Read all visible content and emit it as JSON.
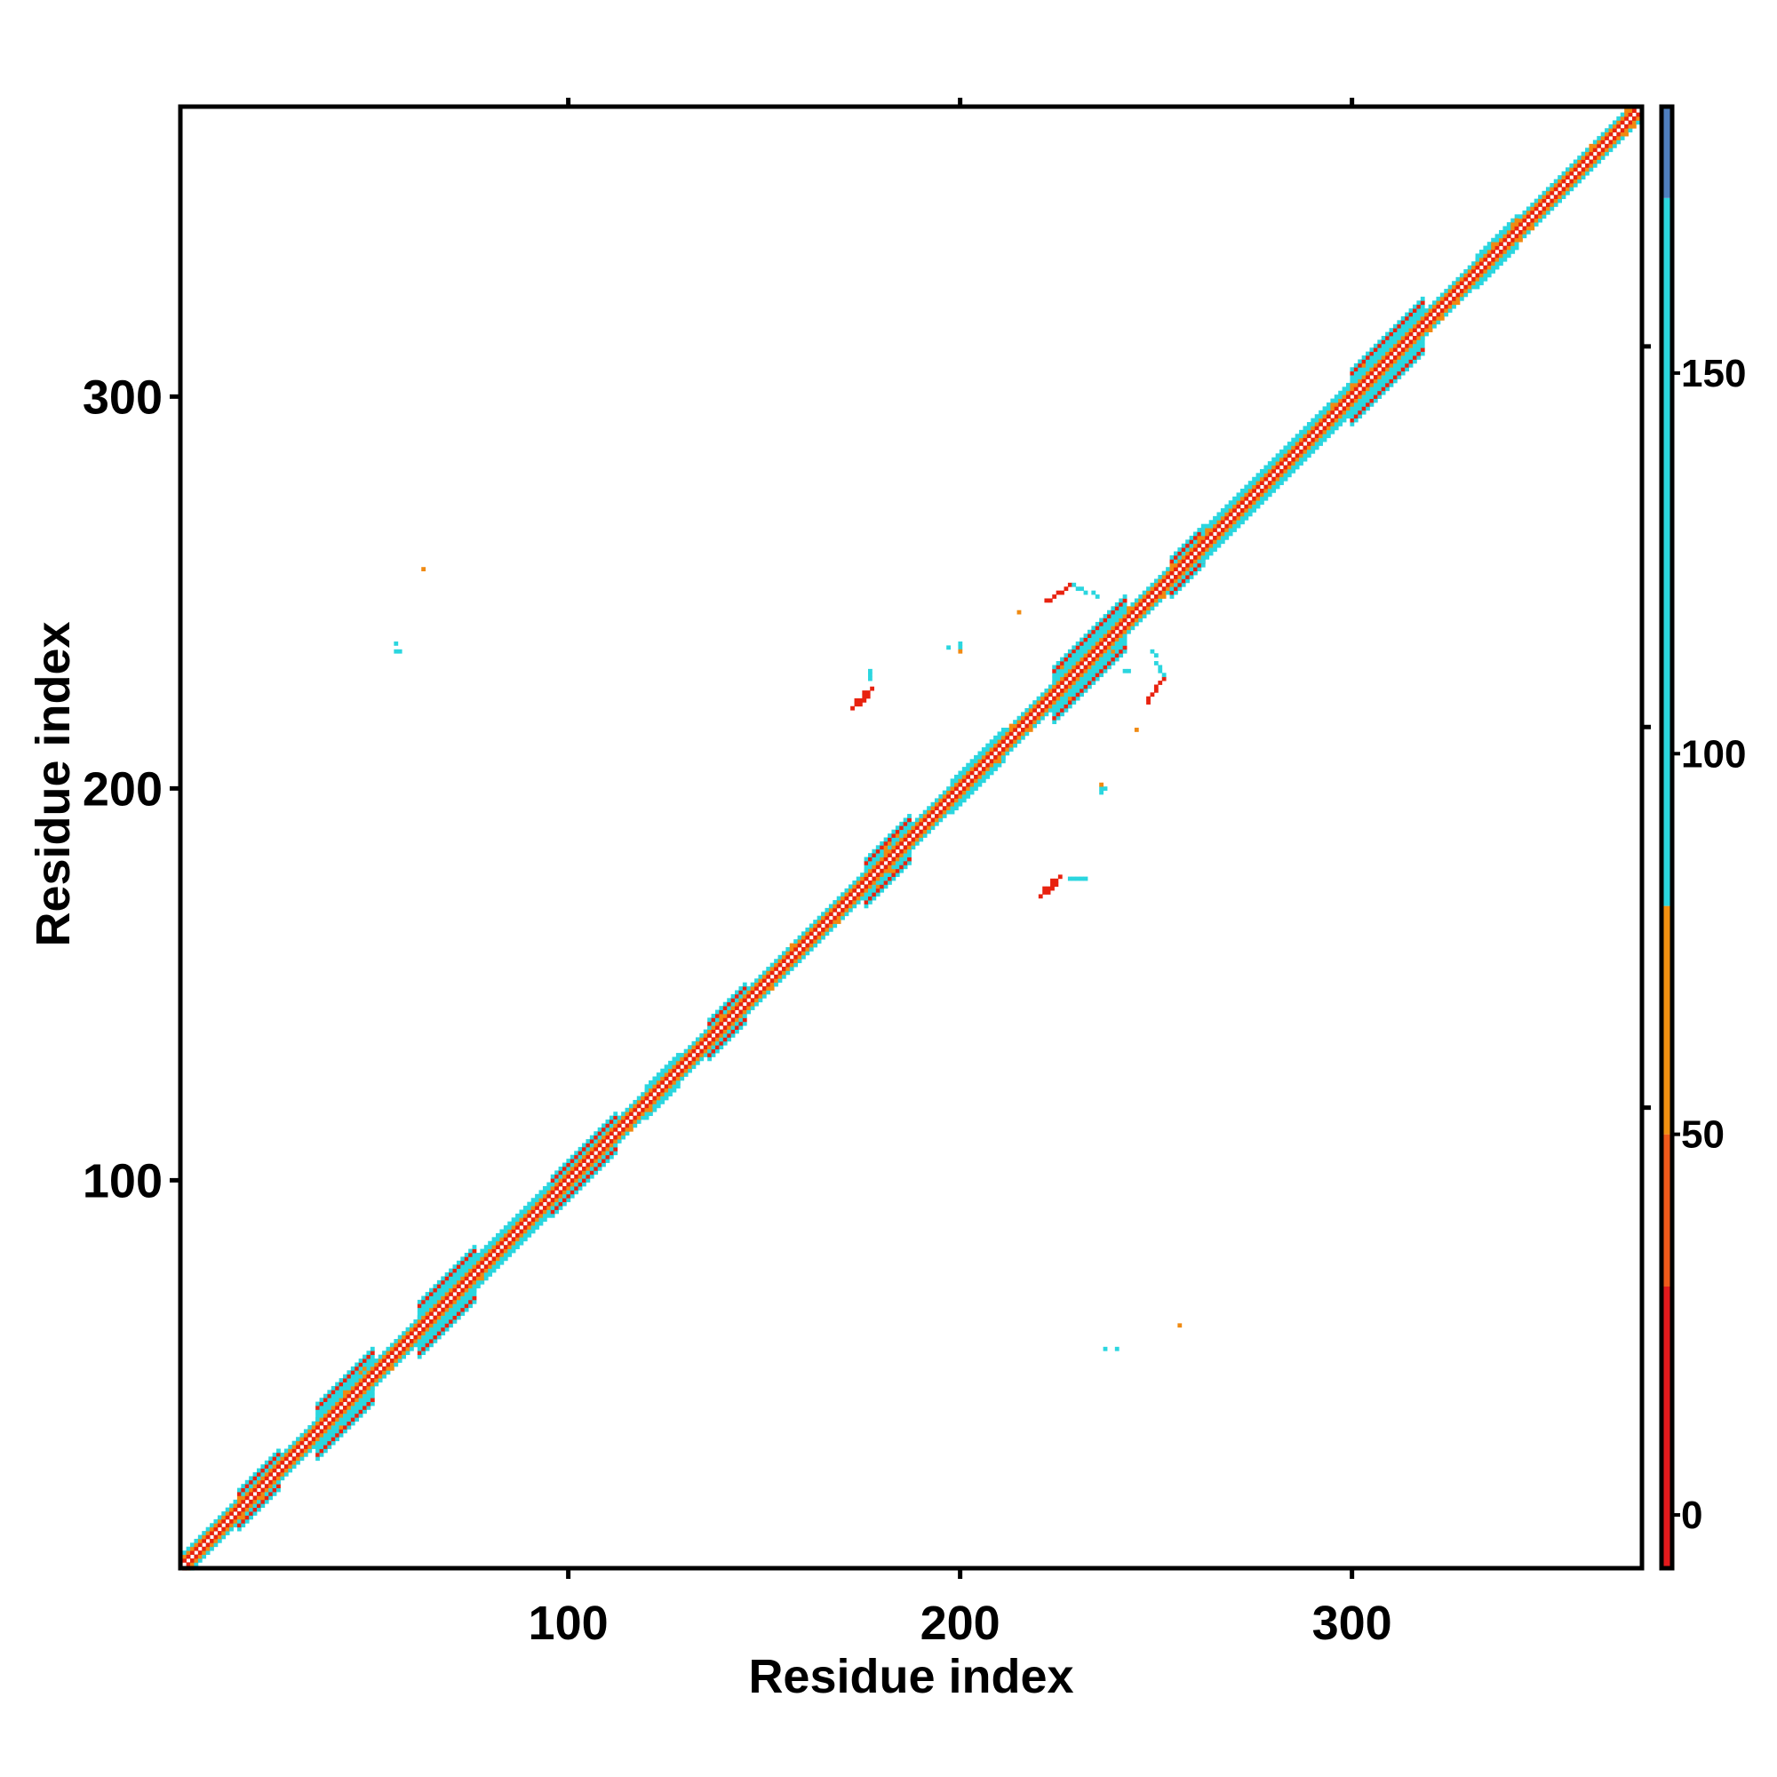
{
  "chart_data": {
    "type": "heatmap",
    "title": "",
    "xlabel": "Residue index",
    "ylabel": "Residue index",
    "xlim": [
      1,
      373
    ],
    "ylim": [
      1,
      373
    ],
    "x_ticks": [
      100,
      200,
      300
    ],
    "y_ticks": [
      100,
      200,
      300
    ],
    "top_ticks": [
      100,
      200,
      300
    ],
    "grid": false,
    "legend": "colorbar-right",
    "colorbar": {
      "range": [
        -7,
        185
      ],
      "ticks": [
        0,
        50,
        100,
        150
      ],
      "bands": [
        {
          "from": -7,
          "to": 30,
          "color": "#e31a1c"
        },
        {
          "from": 30,
          "to": 50,
          "color": "#f05a1a"
        },
        {
          "from": 50,
          "to": 80,
          "color": "#f29111"
        },
        {
          "from": 80,
          "to": 173,
          "color": "#2bd6df"
        },
        {
          "from": 173,
          "to": 185,
          "color": "#4f7fbf"
        }
      ]
    },
    "colors": {
      "red": "#e8220f",
      "orange": "#f08a12",
      "cyan": "#2bd6df"
    },
    "diagonal_segments": [
      {
        "from": 1,
        "to": 16,
        "hw": 3
      },
      {
        "from": 16,
        "to": 26,
        "hw": 5
      },
      {
        "from": 26,
        "to": 36,
        "hw": 3
      },
      {
        "from": 36,
        "to": 50,
        "hw": 7
      },
      {
        "from": 50,
        "to": 62,
        "hw": 3
      },
      {
        "from": 62,
        "to": 76,
        "hw": 7
      },
      {
        "from": 76,
        "to": 96,
        "hw": 4
      },
      {
        "from": 96,
        "to": 112,
        "hw": 5
      },
      {
        "from": 112,
        "to": 120,
        "hw": 3
      },
      {
        "from": 120,
        "to": 128,
        "hw": 4
      },
      {
        "from": 128,
        "to": 136,
        "hw": 3
      },
      {
        "from": 136,
        "to": 145,
        "hw": 5
      },
      {
        "from": 145,
        "to": 176,
        "hw": 3
      },
      {
        "from": 176,
        "to": 187,
        "hw": 6
      },
      {
        "from": 187,
        "to": 198,
        "hw": 3
      },
      {
        "from": 198,
        "to": 211,
        "hw": 4
      },
      {
        "from": 211,
        "to": 224,
        "hw": 3
      },
      {
        "from": 224,
        "to": 242,
        "hw": 7
      },
      {
        "from": 242,
        "to": 254,
        "hw": 3
      },
      {
        "from": 254,
        "to": 262,
        "hw": 5
      },
      {
        "from": 262,
        "to": 272,
        "hw": 4
      },
      {
        "from": 272,
        "to": 283,
        "hw": 4
      },
      {
        "from": 283,
        "to": 300,
        "hw": 4
      },
      {
        "from": 300,
        "to": 318,
        "hw": 7
      },
      {
        "from": 318,
        "to": 332,
        "hw": 3
      },
      {
        "from": 332,
        "to": 342,
        "hw": 4
      },
      {
        "from": 342,
        "to": 373,
        "hw": 3
      }
    ],
    "off_diagonal_contacts": [
      {
        "x": 173.5,
        "y": 221.5,
        "color": "red",
        "cells": [
          [
            0,
            0
          ],
          [
            1,
            1
          ],
          [
            2,
            2
          ],
          [
            1,
            0
          ],
          [
            2,
            1
          ],
          [
            3,
            2
          ],
          [
            0,
            1
          ],
          [
            3,
            3
          ],
          [
            4,
            4
          ],
          [
            -1,
            -1
          ],
          [
            2,
            3
          ]
        ]
      },
      {
        "x": 177,
        "y": 228,
        "color": "cyan",
        "cells": [
          [
            0,
            0
          ],
          [
            0,
            1
          ],
          [
            0,
            2
          ]
        ]
      },
      {
        "x": 221.5,
        "y": 173.5,
        "color": "red",
        "cells": [
          [
            0,
            0
          ],
          [
            1,
            1
          ],
          [
            2,
            2
          ],
          [
            1,
            0
          ],
          [
            2,
            1
          ],
          [
            3,
            2
          ],
          [
            0,
            1
          ],
          [
            3,
            3
          ],
          [
            4,
            4
          ],
          [
            -1,
            -1
          ],
          [
            2,
            3
          ]
        ]
      },
      {
        "x": 228,
        "y": 177,
        "color": "cyan",
        "cells": [
          [
            0,
            0
          ],
          [
            1,
            0
          ],
          [
            2,
            0
          ],
          [
            3,
            0
          ],
          [
            4,
            0
          ]
        ]
      },
      {
        "x": 222,
        "y": 248,
        "color": "red",
        "cells": [
          [
            0,
            0
          ],
          [
            1,
            0
          ],
          [
            2,
            1
          ],
          [
            3,
            2
          ],
          [
            4,
            2
          ],
          [
            5,
            3
          ],
          [
            6,
            4
          ]
        ]
      },
      {
        "x": 229,
        "y": 252,
        "color": "cyan",
        "cells": [
          [
            0,
            0
          ],
          [
            1,
            -1
          ],
          [
            2,
            -1
          ],
          [
            3,
            -2
          ],
          [
            5,
            -2
          ],
          [
            6,
            -3
          ]
        ]
      },
      {
        "x": 248,
        "y": 222,
        "color": "red",
        "cells": [
          [
            0,
            0
          ],
          [
            0,
            1
          ],
          [
            1,
            2
          ],
          [
            2,
            3
          ],
          [
            2,
            4
          ],
          [
            3,
            5
          ],
          [
            4,
            6
          ]
        ]
      },
      {
        "x": 252,
        "y": 229,
        "color": "cyan",
        "cells": [
          [
            0,
            0
          ],
          [
            -1,
            1
          ],
          [
            -1,
            2
          ],
          [
            -2,
            3
          ],
          [
            -2,
            5
          ],
          [
            -3,
            6
          ]
        ]
      },
      {
        "x": 236,
        "y": 233,
        "color": "cyan",
        "cells": [
          [
            0,
            0
          ],
          [
            -1,
            -1
          ],
          [
            1,
            1
          ],
          [
            -6,
            0
          ],
          [
            -7,
            1
          ],
          [
            6,
            -3
          ],
          [
            7,
            -3
          ],
          [
            -3,
            -5
          ],
          [
            4,
            4
          ]
        ]
      },
      {
        "x": 200,
        "y": 236,
        "color": "cyan",
        "cells": [
          [
            0,
            0
          ],
          [
            0,
            1
          ],
          [
            -3,
            0
          ]
        ]
      },
      {
        "x": 200,
        "y": 235,
        "color": "orange",
        "cells": [
          [
            0,
            0
          ]
        ]
      },
      {
        "x": 236,
        "y": 200,
        "color": "cyan",
        "cells": [
          [
            0,
            0
          ],
          [
            1,
            0
          ],
          [
            0,
            -1
          ]
        ]
      },
      {
        "x": 236,
        "y": 201,
        "color": "orange",
        "cells": [
          [
            0,
            0
          ]
        ]
      },
      {
        "x": 63,
        "y": 256,
        "color": "orange",
        "cells": [
          [
            0,
            0
          ]
        ]
      },
      {
        "x": 56,
        "y": 237,
        "color": "cyan",
        "cells": [
          [
            0,
            0
          ],
          [
            0,
            -2
          ],
          [
            1,
            -2
          ]
        ]
      },
      {
        "x": 256,
        "y": 63,
        "color": "orange",
        "cells": [
          [
            0,
            0
          ]
        ]
      },
      {
        "x": 237,
        "y": 57,
        "color": "cyan",
        "cells": [
          [
            0,
            0
          ],
          [
            3,
            0
          ]
        ]
      },
      {
        "x": 245,
        "y": 215,
        "color": "orange",
        "cells": [
          [
            0,
            0
          ]
        ]
      },
      {
        "x": 215,
        "y": 245,
        "color": "orange",
        "cells": [
          [
            0,
            0
          ]
        ]
      }
    ]
  }
}
